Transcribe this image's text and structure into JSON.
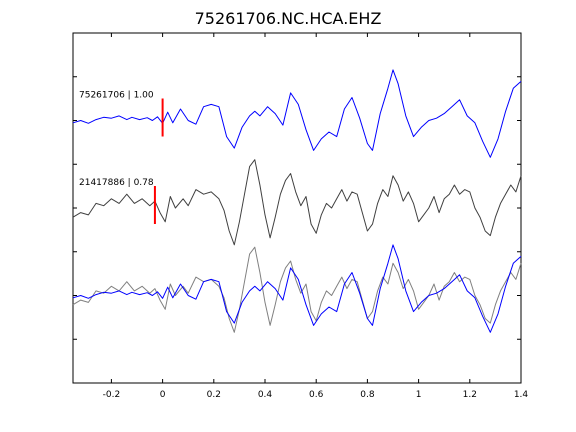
{
  "chart_data": {
    "type": "line",
    "title": "75261706.NC.HCA.EHZ",
    "xlabel": "",
    "ylabel": "",
    "xlim": [
      -0.35,
      1.4
    ],
    "x_ticks": [
      -0.2,
      0,
      0.2,
      0.4,
      0.6,
      0.8,
      1,
      1.2,
      1.4
    ],
    "x_tick_labels": [
      "-0.2",
      "0",
      "0.2",
      "0.4",
      "0.6",
      "0.8",
      "1",
      "1.2",
      "1.4"
    ],
    "y_tick_count": 7,
    "grid": false,
    "colors": {
      "master": "#0000ff",
      "comparison": "#404040",
      "overlay_gray": "#808080",
      "pick": "#ff0000",
      "axes": "#000000"
    },
    "traces": [
      {
        "label": "75261706 | 1.00",
        "color": "#0000ff",
        "pick_time": 0.0,
        "points": [
          [
            -0.35,
            -0.05
          ],
          [
            -0.32,
            0.0
          ],
          [
            -0.29,
            -0.06
          ],
          [
            -0.26,
            0.02
          ],
          [
            -0.23,
            0.07
          ],
          [
            -0.2,
            0.05
          ],
          [
            -0.17,
            0.1
          ],
          [
            -0.14,
            0.02
          ],
          [
            -0.12,
            0.07
          ],
          [
            -0.09,
            0.02
          ],
          [
            -0.06,
            0.06
          ],
          [
            -0.04,
            0.0
          ],
          [
            -0.02,
            0.08
          ],
          [
            0.0,
            -0.06
          ],
          [
            0.02,
            0.18
          ],
          [
            0.04,
            -0.05
          ],
          [
            0.07,
            0.25
          ],
          [
            0.1,
            0.0
          ],
          [
            0.13,
            -0.08
          ],
          [
            0.16,
            0.3
          ],
          [
            0.19,
            0.35
          ],
          [
            0.22,
            0.3
          ],
          [
            0.25,
            -0.35
          ],
          [
            0.28,
            -0.6
          ],
          [
            0.31,
            -0.15
          ],
          [
            0.34,
            0.1
          ],
          [
            0.36,
            0.2
          ],
          [
            0.38,
            0.1
          ],
          [
            0.41,
            0.3
          ],
          [
            0.44,
            0.15
          ],
          [
            0.47,
            -0.1
          ],
          [
            0.5,
            0.6
          ],
          [
            0.53,
            0.35
          ],
          [
            0.56,
            -0.2
          ],
          [
            0.59,
            -0.65
          ],
          [
            0.62,
            -0.4
          ],
          [
            0.65,
            -0.25
          ],
          [
            0.68,
            -0.35
          ],
          [
            0.71,
            0.25
          ],
          [
            0.74,
            0.5
          ],
          [
            0.77,
            0.05
          ],
          [
            0.8,
            -0.5
          ],
          [
            0.82,
            -0.65
          ],
          [
            0.85,
            0.15
          ],
          [
            0.88,
            0.7
          ],
          [
            0.9,
            1.1
          ],
          [
            0.92,
            0.8
          ],
          [
            0.95,
            0.1
          ],
          [
            0.98,
            -0.35
          ],
          [
            1.01,
            -0.15
          ],
          [
            1.04,
            0.0
          ],
          [
            1.07,
            0.05
          ],
          [
            1.1,
            0.15
          ],
          [
            1.13,
            0.3
          ],
          [
            1.16,
            0.45
          ],
          [
            1.19,
            0.1
          ],
          [
            1.22,
            -0.05
          ],
          [
            1.25,
            -0.45
          ],
          [
            1.28,
            -0.8
          ],
          [
            1.31,
            -0.4
          ],
          [
            1.34,
            0.2
          ],
          [
            1.37,
            0.7
          ],
          [
            1.4,
            0.85
          ]
        ]
      },
      {
        "label": "21417886 | 0.78",
        "color": "#404040",
        "pick_time": -0.03,
        "points": [
          [
            -0.35,
            -0.2
          ],
          [
            -0.32,
            -0.1
          ],
          [
            -0.29,
            -0.15
          ],
          [
            -0.26,
            0.1
          ],
          [
            -0.23,
            0.05
          ],
          [
            -0.2,
            0.2
          ],
          [
            -0.17,
            0.1
          ],
          [
            -0.14,
            0.3
          ],
          [
            -0.11,
            0.1
          ],
          [
            -0.08,
            0.2
          ],
          [
            -0.05,
            0.05
          ],
          [
            -0.03,
            0.15
          ],
          [
            -0.01,
            -0.1
          ],
          [
            0.01,
            -0.3
          ],
          [
            0.03,
            0.25
          ],
          [
            0.05,
            0.0
          ],
          [
            0.08,
            0.2
          ],
          [
            0.1,
            0.05
          ],
          [
            0.13,
            0.4
          ],
          [
            0.16,
            0.3
          ],
          [
            0.19,
            0.35
          ],
          [
            0.22,
            0.2
          ],
          [
            0.24,
            -0.05
          ],
          [
            0.26,
            -0.5
          ],
          [
            0.28,
            -0.8
          ],
          [
            0.3,
            -0.3
          ],
          [
            0.32,
            0.3
          ],
          [
            0.34,
            0.9
          ],
          [
            0.36,
            1.05
          ],
          [
            0.38,
            0.5
          ],
          [
            0.4,
            -0.15
          ],
          [
            0.42,
            -0.65
          ],
          [
            0.44,
            -0.2
          ],
          [
            0.46,
            0.3
          ],
          [
            0.48,
            0.6
          ],
          [
            0.5,
            0.75
          ],
          [
            0.52,
            0.35
          ],
          [
            0.54,
            0.05
          ],
          [
            0.56,
            0.25
          ],
          [
            0.58,
            -0.35
          ],
          [
            0.6,
            -0.55
          ],
          [
            0.62,
            -0.15
          ],
          [
            0.64,
            0.1
          ],
          [
            0.66,
            0.0
          ],
          [
            0.68,
            0.2
          ],
          [
            0.7,
            0.4
          ],
          [
            0.72,
            0.15
          ],
          [
            0.74,
            0.35
          ],
          [
            0.76,
            0.3
          ],
          [
            0.78,
            -0.1
          ],
          [
            0.8,
            -0.5
          ],
          [
            0.82,
            -0.35
          ],
          [
            0.84,
            0.1
          ],
          [
            0.86,
            0.4
          ],
          [
            0.88,
            0.25
          ],
          [
            0.9,
            0.7
          ],
          [
            0.92,
            0.5
          ],
          [
            0.94,
            0.15
          ],
          [
            0.96,
            0.35
          ],
          [
            0.98,
            0.1
          ],
          [
            1.0,
            -0.3
          ],
          [
            1.02,
            -0.15
          ],
          [
            1.04,
            0.0
          ],
          [
            1.06,
            0.25
          ],
          [
            1.08,
            -0.1
          ],
          [
            1.1,
            0.2
          ],
          [
            1.12,
            0.3
          ],
          [
            1.14,
            0.5
          ],
          [
            1.16,
            0.3
          ],
          [
            1.18,
            0.4
          ],
          [
            1.2,
            0.35
          ],
          [
            1.22,
            0.0
          ],
          [
            1.24,
            -0.2
          ],
          [
            1.26,
            -0.5
          ],
          [
            1.28,
            -0.6
          ],
          [
            1.3,
            -0.2
          ],
          [
            1.32,
            0.1
          ],
          [
            1.34,
            0.3
          ],
          [
            1.36,
            0.5
          ],
          [
            1.38,
            0.35
          ],
          [
            1.4,
            0.7
          ]
        ]
      }
    ],
    "overlay": {
      "series": [
        {
          "name": "",
          "source_trace": 0,
          "color": "#0000ff"
        },
        {
          "name": "",
          "source_trace": 1,
          "color": "#808080"
        }
      ]
    }
  }
}
